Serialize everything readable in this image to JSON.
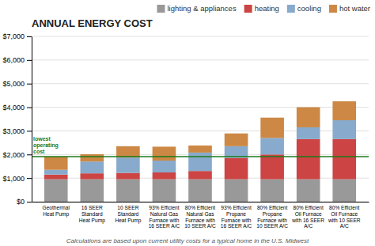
{
  "chart_data": {
    "type": "bar",
    "stacked": true,
    "title": "ANNUAL ENERGY COST",
    "subtitle": "Calculations are based upon current utility costs for a typical home in the U.S. Midwest",
    "categories": [
      "Geothermal\nHeat Pump",
      "16 SEER\nStandard\nHeat Pump",
      "10 SEER\nStandard\nHeat Pump",
      "93% Efficient\nNatural Gas\nFurnace with\n16 SEER A/C",
      "80% Efficient\nNatural Gas\nFurnace with\n10 SEER A/C",
      "93% Efficient\nPropane\nFurnace with\n16 SEER A/C",
      "80% Efficient\nPropane\nFurnace with\n10 SEER A/C",
      "80% Efficient\nOil Furnace\nwith 16 SEER\nA/C",
      "80% Efficient\nOil Furnace\nwith 10 SEER\nA/C"
    ],
    "series": [
      {
        "name": "lighting & appliances",
        "color": "#999999",
        "values": [
          950,
          950,
          950,
          950,
          950,
          950,
          950,
          950,
          950
        ]
      },
      {
        "name": "heating",
        "color": "#cc4444",
        "values": [
          200,
          250,
          270,
          290,
          350,
          900,
          1050,
          1700,
          1700
        ]
      },
      {
        "name": "cooling",
        "color": "#88aacc",
        "values": [
          200,
          500,
          650,
          500,
          780,
          500,
          700,
          500,
          800
        ]
      },
      {
        "name": "hot water",
        "color": "#cc8844",
        "values": [
          560,
          310,
          480,
          590,
          300,
          540,
          860,
          850,
          800
        ]
      }
    ],
    "annotations": [
      {
        "text": "lowest\noperating\ncost",
        "y": 1910,
        "color": "#1a7a1a"
      }
    ],
    "ylim": [
      0,
      7000
    ],
    "yticks": [
      {
        "value": 0,
        "label": "$0"
      },
      {
        "value": 1000,
        "label": "$1,000"
      },
      {
        "value": 2000,
        "label": "$2,000"
      },
      {
        "value": 3000,
        "label": "$3,000"
      },
      {
        "value": 4000,
        "label": "$4,000"
      },
      {
        "value": 5000,
        "label": "$5,000"
      },
      {
        "value": 6000,
        "label": "$6,000"
      },
      {
        "value": 7000,
        "label": "$7,000"
      }
    ],
    "grid": true,
    "legend": "upper right"
  }
}
